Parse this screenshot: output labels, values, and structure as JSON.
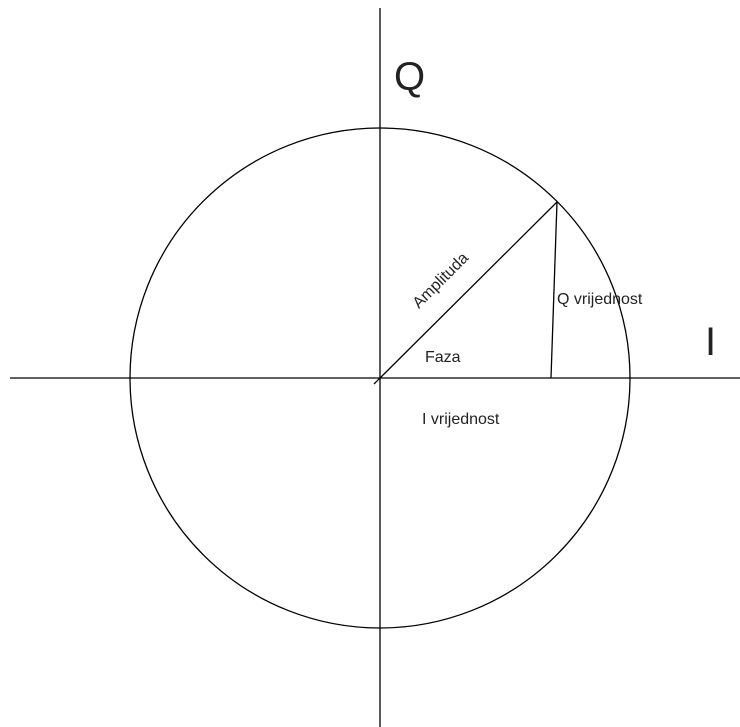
{
  "axes": {
    "q": "Q",
    "i": "I"
  },
  "labels": {
    "amplitude": "Amplituda",
    "q_value": "Q vrijednost",
    "phase": "Faza",
    "i_value": "I vrijednost"
  }
}
